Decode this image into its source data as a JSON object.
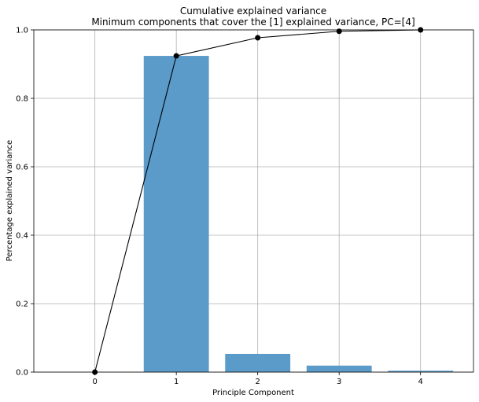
{
  "chart_data": {
    "type": "bar",
    "title": "Cumulative explained variance",
    "subtitle": "Minimum components that cover the [1] explained variance, PC=[4]",
    "xlabel": "Principle Component",
    "ylabel": "Percentage explained variance",
    "x_ticks": [
      "0",
      "1",
      "2",
      "3",
      "4"
    ],
    "y_ticks": [
      "0.0",
      "0.2",
      "0.4",
      "0.6",
      "0.8",
      "1.0"
    ],
    "xlim": [
      -0.75,
      4.65
    ],
    "ylim": [
      0,
      1.0
    ],
    "grid": true,
    "bar_series": {
      "x": [
        1,
        2,
        3,
        4
      ],
      "values": [
        0.924,
        0.053,
        0.019,
        0.004
      ],
      "color": "#5b9bc9"
    },
    "line_series": {
      "x": [
        0,
        1,
        2,
        3,
        4
      ],
      "values": [
        0.0,
        0.924,
        0.977,
        0.996,
        1.0
      ],
      "color": "#000000"
    }
  }
}
